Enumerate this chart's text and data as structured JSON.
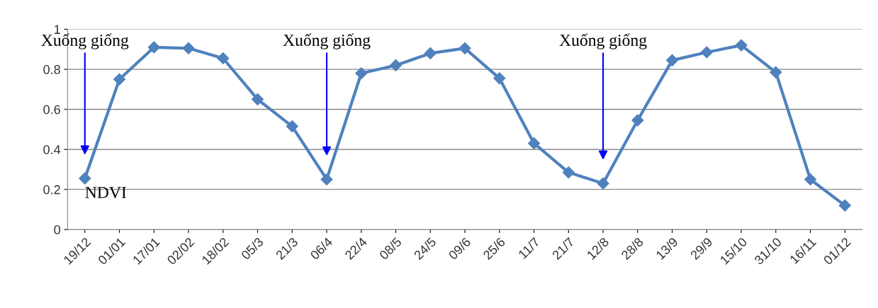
{
  "chart_data": {
    "type": "line",
    "categories": [
      "19/12",
      "01/01",
      "17/01",
      "02/02",
      "18/02",
      "05/3",
      "21/3",
      "06/4",
      "22/4",
      "08/5",
      "24/5",
      "09/6",
      "25/6",
      "11/7",
      "21/7",
      "12/8",
      "28/8",
      "13/9",
      "29/9",
      "15/10",
      "31/10",
      "16/11",
      "01/12"
    ],
    "series": [
      {
        "name": "NDVI",
        "color": "#4f81bd",
        "values": [
          0.255,
          0.75,
          0.91,
          0.905,
          0.855,
          0.65,
          0.515,
          0.25,
          0.78,
          0.82,
          0.88,
          0.905,
          0.755,
          0.43,
          0.285,
          0.23,
          0.545,
          0.845,
          0.885,
          0.92,
          0.785,
          0.25,
          0.12
        ]
      }
    ],
    "ylim": [
      0,
      1
    ],
    "yticks": [
      0,
      0.2,
      0.4,
      0.6,
      0.8,
      1
    ],
    "grid": "y",
    "marker": "diamond",
    "line_style": "solid",
    "annotations": [
      "Xuống giống",
      "Xuống giống",
      "Xuống giống"
    ]
  }
}
